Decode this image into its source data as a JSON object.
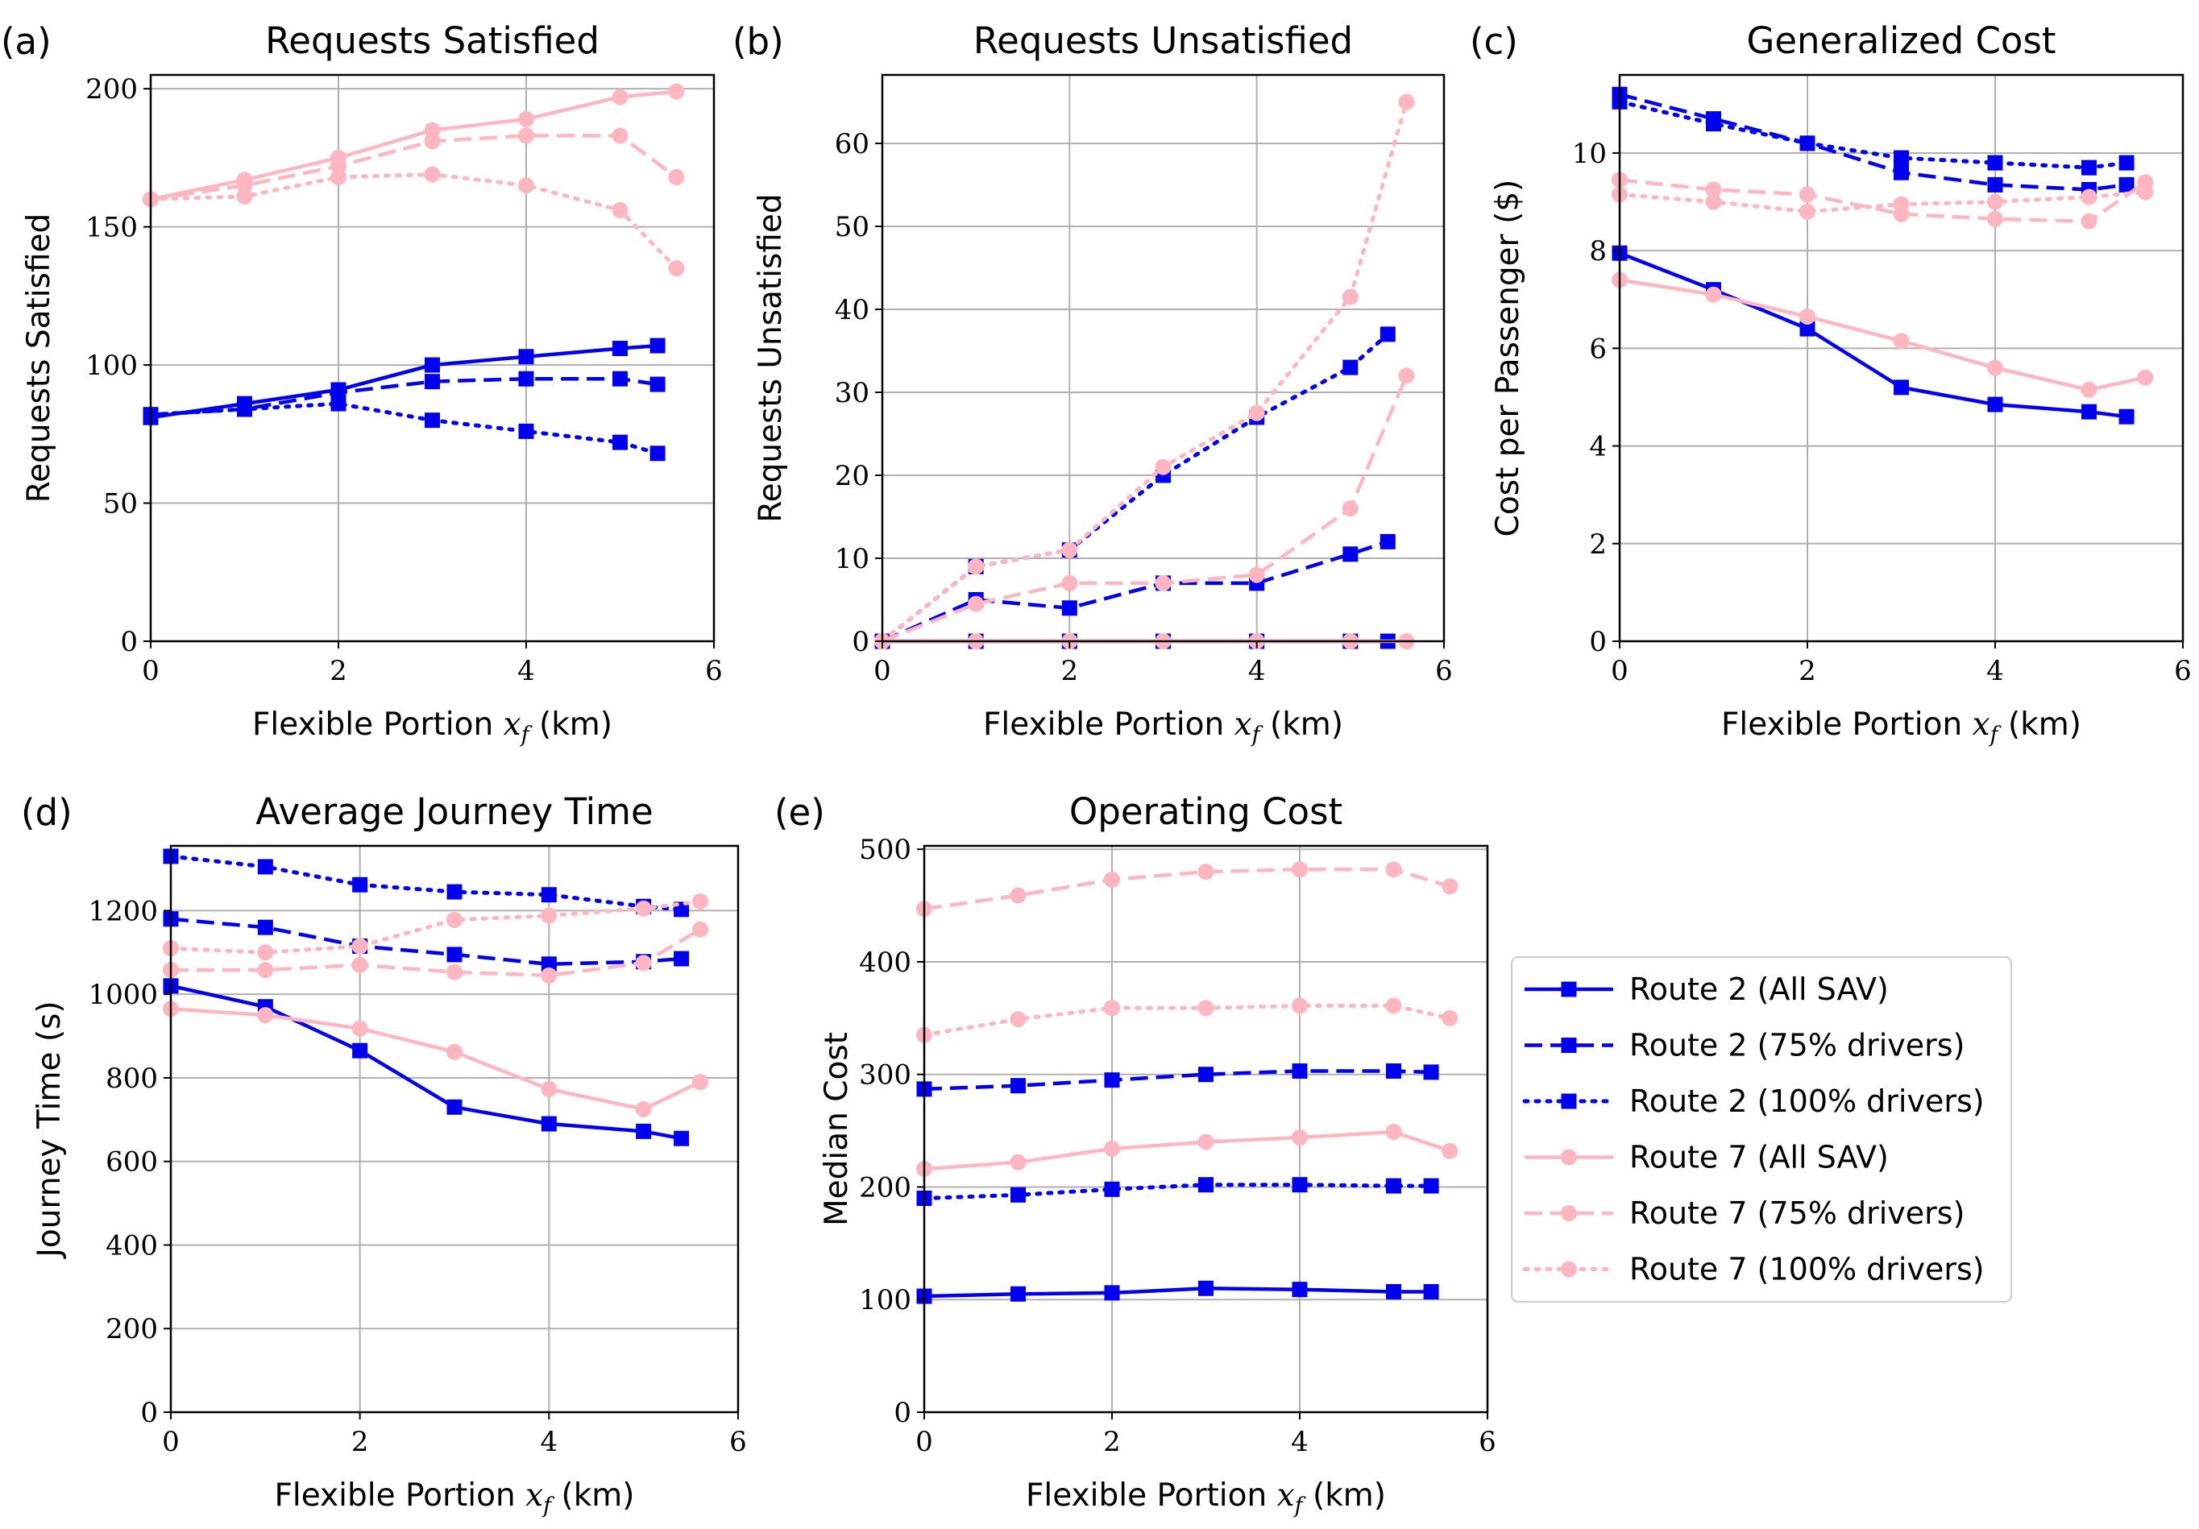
{
  "colors": {
    "route2": "#0000ee",
    "route7": "#ffb6c1",
    "grid": "#b0b0b0"
  },
  "legend": {
    "entries": [
      {
        "label": "Route 2 (All SAV)",
        "route": "r2",
        "style": "solid"
      },
      {
        "label": "Route 2 (75% drivers)",
        "route": "r2",
        "style": "dashed"
      },
      {
        "label": "Route 2 (100% drivers)",
        "route": "r2",
        "style": "dotted"
      },
      {
        "label": "Route 7 (All SAV)",
        "route": "r7",
        "style": "solid"
      },
      {
        "label": "Route 7 (75% drivers)",
        "route": "r7",
        "style": "dashed"
      },
      {
        "label": "Route 7 (100% drivers)",
        "route": "r7",
        "style": "dotted"
      }
    ]
  },
  "chart_data": [
    {
      "id": "a",
      "panel_label": "(a)",
      "type": "line",
      "title": "Requests Satisfied",
      "ylabel": "Requests Satisfied",
      "xlabel": "Flexible Portion",
      "xlabel_var": "x",
      "xlabel_sub": "f",
      "xlabel_unit": "(km)",
      "xlim": [
        0,
        6
      ],
      "ylim": [
        0,
        205
      ],
      "xticks": [
        0,
        2,
        4,
        6
      ],
      "yticks": [
        0,
        50,
        100,
        150,
        200
      ],
      "grid": true,
      "series": [
        {
          "name": "Route 2 (All SAV)",
          "x": [
            0,
            1,
            2,
            3,
            4,
            5,
            5.4
          ],
          "y": [
            81,
            86,
            91,
            100,
            103,
            106,
            107
          ]
        },
        {
          "name": "Route 2 (75% drivers)",
          "x": [
            0,
            1,
            2,
            3,
            4,
            5,
            5.4
          ],
          "y": [
            82,
            84,
            90,
            94,
            95,
            95,
            93
          ]
        },
        {
          "name": "Route 2 (100% drivers)",
          "x": [
            0,
            1,
            2,
            3,
            4,
            5,
            5.4
          ],
          "y": [
            82,
            84,
            86,
            80,
            76,
            72,
            68
          ]
        },
        {
          "name": "Route 7 (All SAV)",
          "x": [
            0,
            1,
            2,
            3,
            4,
            5,
            5.6
          ],
          "y": [
            160,
            167,
            175,
            185,
            189,
            197,
            199
          ]
        },
        {
          "name": "Route 7 (75% drivers)",
          "x": [
            0,
            1,
            2,
            3,
            4,
            5,
            5.6
          ],
          "y": [
            160,
            165,
            172,
            181,
            183,
            183,
            168
          ]
        },
        {
          "name": "Route 7 (100% drivers)",
          "x": [
            0,
            1,
            2,
            3,
            4,
            5,
            5.6
          ],
          "y": [
            160,
            161,
            168,
            169,
            165,
            156,
            135
          ]
        }
      ]
    },
    {
      "id": "b",
      "panel_label": "(b)",
      "type": "line",
      "title": "Requests Unsatisfied",
      "ylabel": "Requests Unsatisfied",
      "xlabel": "Flexible Portion",
      "xlabel_var": "x",
      "xlabel_sub": "f",
      "xlabel_unit": "(km)",
      "xlim": [
        0,
        6
      ],
      "ylim": [
        0,
        68.25
      ],
      "xticks": [
        0,
        2,
        4,
        6
      ],
      "yticks": [
        0,
        10,
        20,
        30,
        40,
        50,
        60
      ],
      "grid": true,
      "series": [
        {
          "name": "Route 2 (All SAV)",
          "x": [
            0,
            1,
            2,
            3,
            4,
            5,
            5.4
          ],
          "y": [
            0,
            0,
            0,
            0,
            0,
            0,
            0
          ]
        },
        {
          "name": "Route 2 (75% drivers)",
          "x": [
            0,
            1,
            2,
            3,
            4,
            5,
            5.4
          ],
          "y": [
            0,
            5,
            4,
            7,
            7,
            10.5,
            12
          ]
        },
        {
          "name": "Route 2 (100% drivers)",
          "x": [
            0,
            1,
            2,
            3,
            4,
            5,
            5.4
          ],
          "y": [
            0,
            9,
            11,
            20,
            27,
            33,
            37
          ]
        },
        {
          "name": "Route 7 (All SAV)",
          "x": [
            0,
            1,
            2,
            3,
            4,
            5,
            5.6
          ],
          "y": [
            0,
            0,
            0,
            0,
            0,
            0,
            0
          ]
        },
        {
          "name": "Route 7 (75% drivers)",
          "x": [
            0,
            1,
            2,
            3,
            4,
            5,
            5.6
          ],
          "y": [
            0,
            4.5,
            7,
            7,
            8,
            16,
            32
          ]
        },
        {
          "name": "Route 7 (100% drivers)",
          "x": [
            0,
            1,
            2,
            3,
            4,
            5,
            5.6
          ],
          "y": [
            0,
            9,
            11,
            21,
            27.5,
            41.5,
            65
          ]
        }
      ]
    },
    {
      "id": "c",
      "panel_label": "(c)",
      "type": "line",
      "title": "Generalized Cost",
      "ylabel": "Cost per Passenger ($)",
      "xlabel": "Flexible Portion",
      "xlabel_var": "x",
      "xlabel_sub": "f",
      "xlabel_unit": "(km)",
      "xlim": [
        0,
        6
      ],
      "ylim": [
        0,
        11.6
      ],
      "xticks": [
        0,
        2,
        4,
        6
      ],
      "yticks": [
        0,
        2,
        4,
        6,
        8,
        10
      ],
      "grid": true,
      "series": [
        {
          "name": "Route 2 (All SAV)",
          "x": [
            0,
            1,
            2,
            3,
            4,
            5,
            5.4
          ],
          "y": [
            7.95,
            7.2,
            6.4,
            5.2,
            4.85,
            4.7,
            4.6
          ]
        },
        {
          "name": "Route 2 (75% drivers)",
          "x": [
            0,
            1,
            2,
            3,
            4,
            5,
            5.4
          ],
          "y": [
            11.2,
            10.7,
            10.2,
            9.6,
            9.35,
            9.25,
            9.35
          ]
        },
        {
          "name": "Route 2 (100% drivers)",
          "x": [
            0,
            1,
            2,
            3,
            4,
            5,
            5.4
          ],
          "y": [
            11.05,
            10.6,
            10.2,
            9.9,
            9.8,
            9.7,
            9.8
          ]
        },
        {
          "name": "Route 7 (All SAV)",
          "x": [
            0,
            1,
            2,
            3,
            4,
            5,
            5.6
          ],
          "y": [
            7.4,
            7.1,
            6.65,
            6.15,
            5.6,
            5.15,
            5.4
          ]
        },
        {
          "name": "Route 7 (75% drivers)",
          "x": [
            0,
            1,
            2,
            3,
            4,
            5,
            5.6
          ],
          "y": [
            9.45,
            9.25,
            9.15,
            8.75,
            8.65,
            8.6,
            9.4
          ]
        },
        {
          "name": "Route 7 (100% drivers)",
          "x": [
            0,
            1,
            2,
            3,
            4,
            5,
            5.6
          ],
          "y": [
            9.15,
            9.0,
            8.8,
            8.95,
            9.0,
            9.1,
            9.2
          ]
        }
      ]
    },
    {
      "id": "d",
      "panel_label": "(d)",
      "type": "line",
      "title": "Average Journey Time",
      "ylabel": "Journey Time (s)",
      "xlabel": "Flexible Portion",
      "xlabel_var": "x",
      "xlabel_sub": "f",
      "xlabel_unit": "(km)",
      "xlim": [
        0,
        6
      ],
      "ylim": [
        0,
        1355
      ],
      "xticks": [
        0,
        2,
        4,
        6
      ],
      "yticks": [
        0,
        200,
        400,
        600,
        800,
        1000,
        1200
      ],
      "grid": true,
      "series": [
        {
          "name": "Route 2 (All SAV)",
          "x": [
            0,
            1,
            2,
            3,
            4,
            5,
            5.4
          ],
          "y": [
            1020,
            970,
            865,
            730,
            690,
            672,
            655
          ]
        },
        {
          "name": "Route 2 (75% drivers)",
          "x": [
            0,
            1,
            2,
            3,
            4,
            5,
            5.4
          ],
          "y": [
            1180,
            1160,
            1115,
            1095,
            1072,
            1078,
            1085
          ]
        },
        {
          "name": "Route 2 (100% drivers)",
          "x": [
            0,
            1,
            2,
            3,
            4,
            5,
            5.4
          ],
          "y": [
            1330,
            1305,
            1262,
            1245,
            1238,
            1210,
            1203
          ]
        },
        {
          "name": "Route 7 (All SAV)",
          "x": [
            0,
            1,
            2,
            3,
            4,
            5,
            5.6
          ],
          "y": [
            965,
            950,
            918,
            862,
            773,
            725,
            790
          ]
        },
        {
          "name": "Route 7 (75% drivers)",
          "x": [
            0,
            1,
            2,
            3,
            4,
            5,
            5.6
          ],
          "y": [
            1058,
            1058,
            1070,
            1053,
            1045,
            1075,
            1155
          ]
        },
        {
          "name": "Route 7 (100% drivers)",
          "x": [
            0,
            1,
            2,
            3,
            4,
            5,
            5.6
          ],
          "y": [
            1110,
            1100,
            1115,
            1178,
            1188,
            1205,
            1222
          ]
        }
      ]
    },
    {
      "id": "e",
      "panel_label": "(e)",
      "type": "line",
      "title": "Operating Cost",
      "ylabel": "Median Cost",
      "xlabel": "Flexible Portion",
      "xlabel_var": "x",
      "xlabel_sub": "f",
      "xlabel_unit": "(km)",
      "xlim": [
        0,
        6
      ],
      "ylim": [
        0,
        503
      ],
      "xticks": [
        0,
        2,
        4,
        6
      ],
      "yticks": [
        0,
        100,
        200,
        300,
        400,
        500
      ],
      "grid": true,
      "series": [
        {
          "name": "Route 2 (All SAV)",
          "x": [
            0,
            1,
            2,
            3,
            4,
            5,
            5.4
          ],
          "y": [
            103,
            105,
            106,
            110,
            109,
            107,
            107
          ]
        },
        {
          "name": "Route 2 (75% drivers)",
          "x": [
            0,
            1,
            2,
            3,
            4,
            5,
            5.4
          ],
          "y": [
            287,
            290,
            295,
            300,
            303,
            303,
            302
          ]
        },
        {
          "name": "Route 2 (100% drivers)",
          "x": [
            0,
            1,
            2,
            3,
            4,
            5,
            5.4
          ],
          "y": [
            190,
            193,
            198,
            202,
            202,
            201,
            201
          ]
        },
        {
          "name": "Route 7 (All SAV)",
          "x": [
            0,
            1,
            2,
            3,
            4,
            5,
            5.6
          ],
          "y": [
            216,
            222,
            234,
            240,
            244,
            249,
            232
          ]
        },
        {
          "name": "Route 7 (75% drivers)",
          "x": [
            0,
            1,
            2,
            3,
            4,
            5,
            5.6
          ],
          "y": [
            447,
            459,
            473,
            480,
            482,
            482,
            467
          ]
        },
        {
          "name": "Route 7 (100% drivers)",
          "x": [
            0,
            1,
            2,
            3,
            4,
            5,
            5.6
          ],
          "y": [
            335,
            349,
            359,
            359,
            361,
            361,
            350
          ]
        }
      ]
    }
  ]
}
